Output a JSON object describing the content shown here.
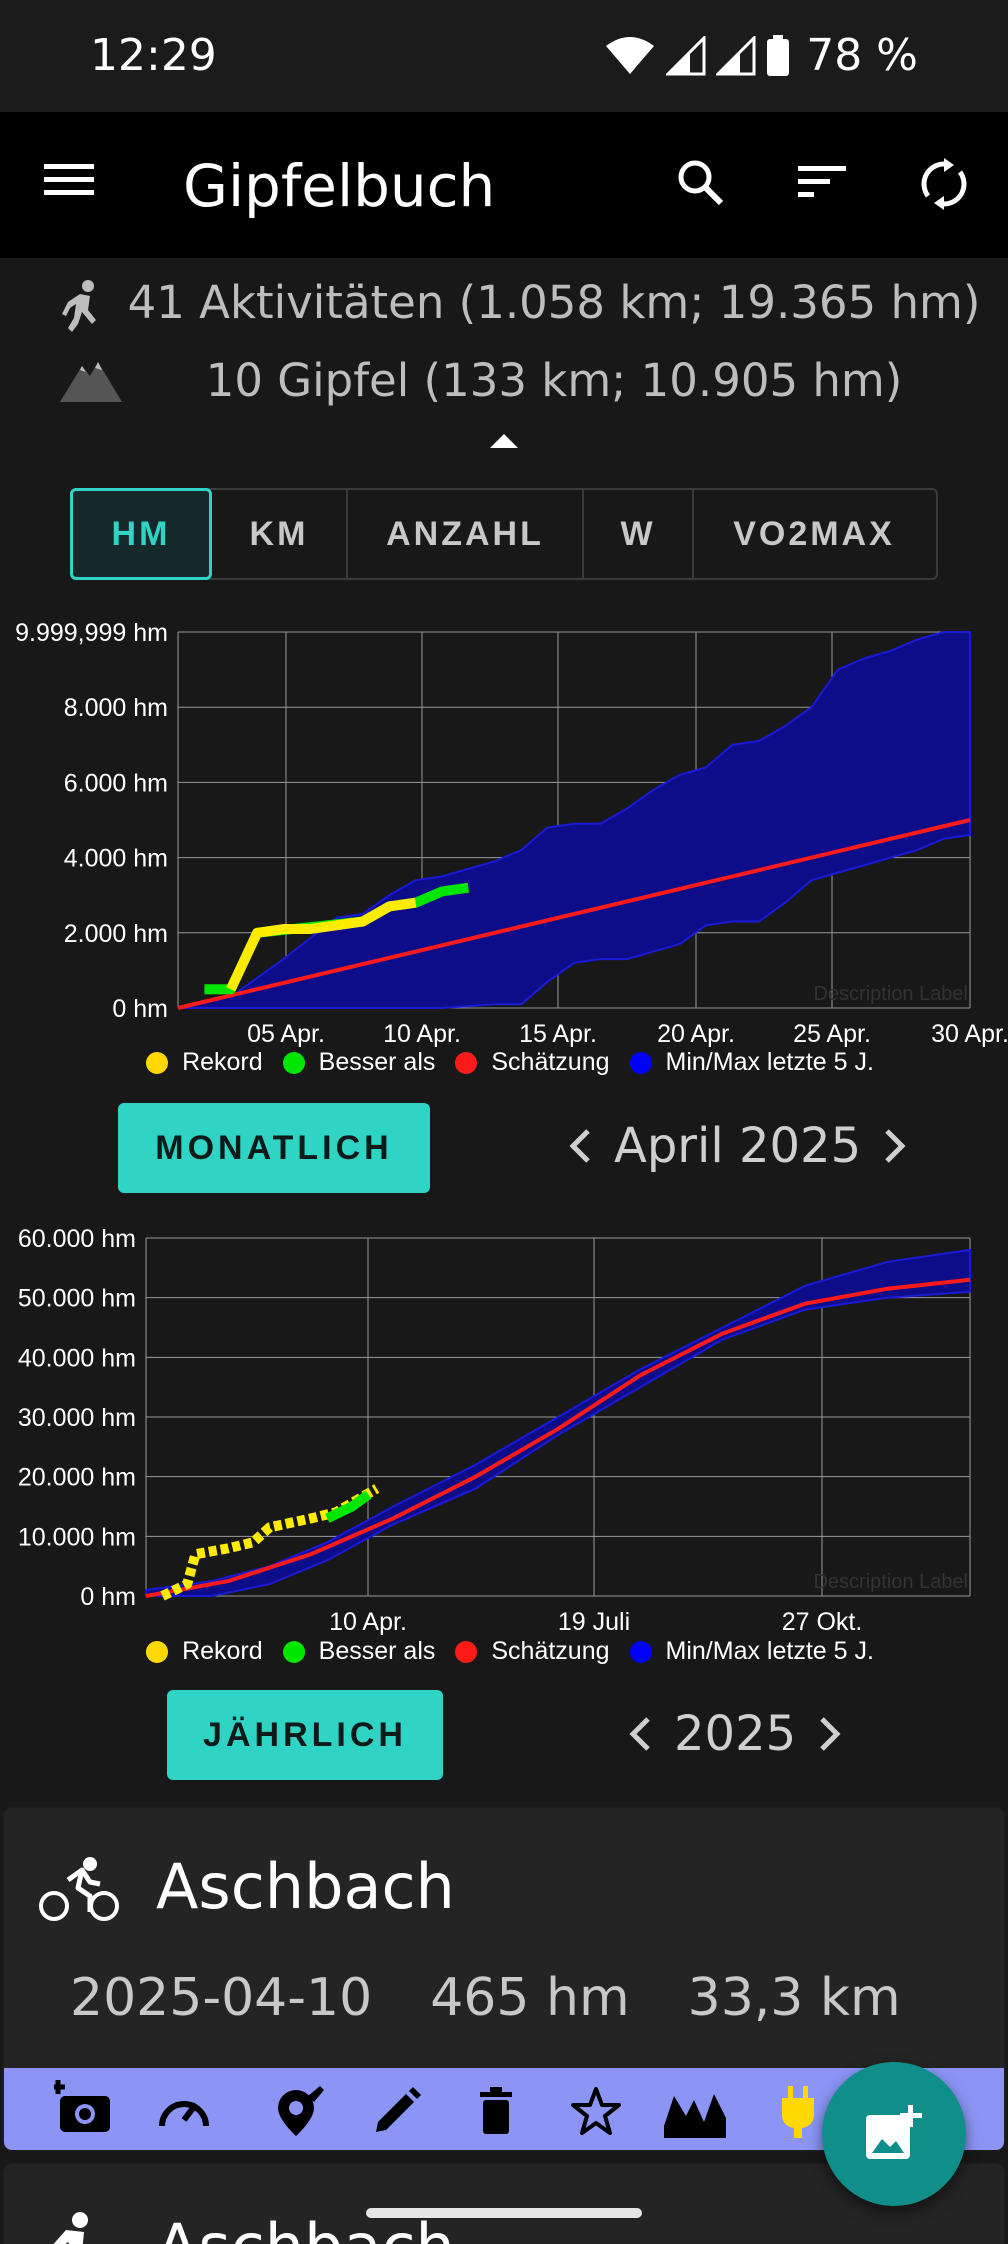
{
  "status": {
    "time": "12:29",
    "battery": "78 %"
  },
  "appbar": {
    "title": "Gipfelbuch",
    "icons": [
      "menu-icon",
      "search-icon",
      "sort-icon",
      "sync-icon"
    ]
  },
  "summary": {
    "activities": "41 Aktivitäten (1.058 km; 19.365 hm)",
    "peaks": "10 Gipfel (133 km; 10.905 hm)"
  },
  "tabs": [
    {
      "label": "HM",
      "active": true
    },
    {
      "label": "KM",
      "active": false
    },
    {
      "label": "ANZAHL",
      "active": false
    },
    {
      "label": "W",
      "active": false
    },
    {
      "label": "VO2MAX",
      "active": false
    }
  ],
  "legend": {
    "rekord": "Rekord",
    "besser": "Besser als",
    "schaetzung": "Schätzung",
    "minmax": "Min/Max letzte 5 J."
  },
  "colors": {
    "rekord": "#ffeb00",
    "besser": "#00e600",
    "schaetzung": "#ff1a1a",
    "minmax": "#0000ff",
    "accent": "#2fd4c4"
  },
  "monthly": {
    "button": "MONATLICH",
    "period": "April 2025",
    "description": "Description Label"
  },
  "yearly": {
    "button": "JÄHRLICH",
    "period": "2025",
    "description": "Description Label"
  },
  "chart_data": [
    {
      "type": "area",
      "y_ticks": [
        "9.999,999 hm",
        "8.000 hm",
        "6.000 hm",
        "4.000 hm",
        "2.000 hm",
        "0 hm"
      ],
      "x_ticks": [
        "05 Apr.",
        "10 Apr.",
        "15 Apr.",
        "20 Apr.",
        "25 Apr.",
        "30 Apr."
      ],
      "x_range": [
        0,
        30
      ],
      "y_range": [
        0,
        10000
      ],
      "grid": true,
      "legend_position": "bottom",
      "series": [
        {
          "name": "Min/Max letzte 5 J.",
          "upper": [
            [
              0,
              0
            ],
            [
              2,
              300
            ],
            [
              4,
              1300
            ],
            [
              6,
              2400
            ],
            [
              7,
              2500
            ],
            [
              8,
              3000
            ],
            [
              9,
              3400
            ],
            [
              10,
              3500
            ],
            [
              11,
              3700
            ],
            [
              12,
              3900
            ],
            [
              13,
              4200
            ],
            [
              14,
              4800
            ],
            [
              15,
              4900
            ],
            [
              16,
              4900
            ],
            [
              17,
              5300
            ],
            [
              18,
              5800
            ],
            [
              19,
              6200
            ],
            [
              20,
              6400
            ],
            [
              21,
              7000
            ],
            [
              22,
              7100
            ],
            [
              23,
              7500
            ],
            [
              24,
              8000
            ],
            [
              25,
              9000
            ],
            [
              26,
              9300
            ],
            [
              27,
              9500
            ],
            [
              28,
              9800
            ],
            [
              29,
              10000
            ],
            [
              30,
              10000
            ]
          ],
          "lower": [
            [
              0,
              0
            ],
            [
              2,
              0
            ],
            [
              4,
              0
            ],
            [
              6,
              0
            ],
            [
              8,
              0
            ],
            [
              10,
              0
            ],
            [
              12,
              100
            ],
            [
              13,
              100
            ],
            [
              14,
              700
            ],
            [
              15,
              1200
            ],
            [
              16,
              1300
            ],
            [
              17,
              1300
            ],
            [
              18,
              1500
            ],
            [
              19,
              1700
            ],
            [
              20,
              2200
            ],
            [
              21,
              2300
            ],
            [
              22,
              2300
            ],
            [
              23,
              2800
            ],
            [
              24,
              3400
            ],
            [
              25,
              3600
            ],
            [
              26,
              3800
            ],
            [
              27,
              4000
            ],
            [
              28,
              4200
            ],
            [
              29,
              4500
            ],
            [
              30,
              4600
            ]
          ]
        },
        {
          "name": "Schätzung",
          "points": [
            [
              0,
              0
            ],
            [
              30,
              5000
            ]
          ]
        },
        {
          "name": "Besser als",
          "points": [
            [
              1,
              500
            ],
            [
              2,
              500
            ],
            [
              3,
              2000
            ],
            [
              7,
              2300
            ],
            [
              8,
              2700
            ],
            [
              9,
              2800
            ],
            [
              10,
              3100
            ],
            [
              11,
              3200
            ]
          ]
        },
        {
          "name": "Rekord",
          "points": [
            [
              2,
              500
            ],
            [
              3,
              2000
            ],
            [
              4,
              2100
            ],
            [
              5,
              2100
            ],
            [
              6,
              2200
            ],
            [
              7,
              2300
            ],
            [
              8,
              2700
            ],
            [
              9,
              2800
            ]
          ]
        }
      ]
    },
    {
      "type": "area",
      "y_ticks": [
        "60.000 hm",
        "50.000 hm",
        "40.000 hm",
        "30.000 hm",
        "20.000 hm",
        "10.000 hm",
        "0 hm"
      ],
      "x_ticks": [
        "10 Apr.",
        "19 Juli",
        "27 Okt."
      ],
      "y_range": [
        0,
        60000
      ],
      "grid": true,
      "legend_position": "bottom",
      "series": [
        {
          "name": "Min/Max letzte 5 J.",
          "upper": [
            [
              0,
              1000
            ],
            [
              0.08,
              2500
            ],
            [
              0.15,
              5000
            ],
            [
              0.22,
              9000
            ],
            [
              0.3,
              15000
            ],
            [
              0.4,
              22000
            ],
            [
              0.5,
              30000
            ],
            [
              0.6,
              38000
            ],
            [
              0.7,
              45000
            ],
            [
              0.8,
              52000
            ],
            [
              0.9,
              56000
            ],
            [
              1,
              58000
            ]
          ],
          "lower": [
            [
              0,
              0
            ],
            [
              0.08,
              0
            ],
            [
              0.15,
              2000
            ],
            [
              0.22,
              6000
            ],
            [
              0.3,
              12000
            ],
            [
              0.4,
              18000
            ],
            [
              0.5,
              27000
            ],
            [
              0.6,
              35000
            ],
            [
              0.7,
              43000
            ],
            [
              0.8,
              48000
            ],
            [
              0.9,
              50000
            ],
            [
              1,
              51000
            ]
          ]
        },
        {
          "name": "Schätzung",
          "points": [
            [
              0,
              0
            ],
            [
              0.1,
              2500
            ],
            [
              0.2,
              7000
            ],
            [
              0.3,
              13000
            ],
            [
              0.4,
              20000
            ],
            [
              0.5,
              28000
            ],
            [
              0.6,
              37000
            ],
            [
              0.7,
              44000
            ],
            [
              0.8,
              49000
            ],
            [
              0.9,
              51500
            ],
            [
              1,
              53000
            ]
          ]
        },
        {
          "name": "Rekord",
          "points": [
            [
              0.02,
              0
            ],
            [
              0.05,
              2000
            ],
            [
              0.06,
              7000
            ],
            [
              0.1,
              8000
            ],
            [
              0.13,
              9000
            ],
            [
              0.15,
              11500
            ],
            [
              0.2,
              13000
            ],
            [
              0.23,
              14000
            ],
            [
              0.28,
              18000
            ]
          ]
        },
        {
          "name": "Besser als",
          "points": [
            [
              0.22,
              13000
            ],
            [
              0.25,
              15000
            ],
            [
              0.27,
              17000
            ]
          ]
        }
      ]
    }
  ],
  "activity_card": {
    "name": "Aschbach",
    "date": "2025-04-10",
    "hm": "465 hm",
    "km": "33,3 km"
  },
  "next_card": {
    "name": "Aschbach"
  }
}
